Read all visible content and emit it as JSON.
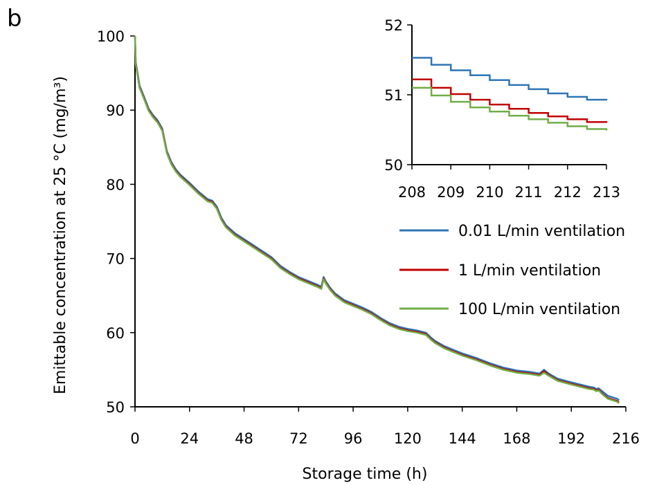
{
  "chart_data": [
    {
      "type": "line",
      "panel_label": "b",
      "xlabel": "Storage time (h)",
      "ylabel": "Emittable concentration at 25 °C (mg/m³)",
      "xlim": [
        0,
        216
      ],
      "ylim": [
        50,
        100
      ],
      "xticks": [
        "0",
        "24",
        "48",
        "72",
        "96",
        "120",
        "144",
        "168",
        "192",
        "216"
      ],
      "yticks": [
        "50",
        "60",
        "70",
        "80",
        "90",
        "100"
      ],
      "legend_position": "right, below inset",
      "x": [
        0,
        0.3,
        1,
        2,
        4,
        6,
        8,
        10,
        12,
        14,
        16,
        18,
        20,
        24,
        28,
        32,
        34,
        36,
        38,
        40,
        44,
        48,
        52,
        56,
        60,
        64,
        68,
        72,
        76,
        80,
        82,
        83,
        84,
        86,
        88,
        92,
        96,
        100,
        104,
        108,
        112,
        116,
        120,
        124,
        128,
        130,
        132,
        136,
        140,
        144,
        150,
        156,
        162,
        168,
        174,
        178,
        180,
        182,
        186,
        192,
        196,
        200,
        202,
        203,
        204,
        206,
        208,
        210,
        212,
        213
      ],
      "series": [
        {
          "name": "0.01 L/min ventilation",
          "color": "#2e75b6",
          "y": [
            100,
            96.5,
            95.2,
            93.3,
            91.8,
            90.2,
            89.3,
            88.6,
            87.5,
            84.5,
            83.0,
            82.0,
            81.3,
            80.2,
            79.0,
            78.0,
            77.8,
            77.0,
            75.5,
            74.5,
            73.4,
            72.6,
            71.8,
            71.0,
            70.2,
            69.0,
            68.2,
            67.5,
            67.0,
            66.5,
            66.2,
            67.5,
            66.9,
            66.0,
            65.3,
            64.4,
            63.9,
            63.4,
            62.8,
            62.0,
            61.3,
            60.8,
            60.5,
            60.3,
            60.0,
            59.4,
            58.9,
            58.2,
            57.7,
            57.2,
            56.6,
            55.9,
            55.3,
            54.9,
            54.7,
            54.5,
            55.0,
            54.5,
            53.8,
            53.3,
            53.0,
            52.7,
            52.6,
            52.4,
            52.5,
            52.0,
            51.5,
            51.3,
            51.1,
            50.9
          ]
        },
        {
          "name": "1 L/min ventilation",
          "color": "#c00000",
          "y": [
            100,
            96.3,
            95.0,
            93.1,
            91.6,
            90.0,
            89.1,
            88.4,
            87.3,
            84.3,
            82.8,
            81.8,
            81.1,
            80.0,
            78.8,
            77.8,
            77.6,
            76.8,
            75.3,
            74.3,
            73.2,
            72.4,
            71.6,
            70.8,
            70.0,
            68.8,
            68.0,
            67.3,
            66.8,
            66.3,
            66.0,
            67.3,
            66.7,
            65.8,
            65.1,
            64.2,
            63.7,
            63.2,
            62.6,
            61.8,
            61.1,
            60.6,
            60.3,
            60.1,
            59.8,
            59.2,
            58.7,
            58.0,
            57.5,
            57.0,
            56.4,
            55.7,
            55.1,
            54.7,
            54.5,
            54.3,
            54.8,
            54.3,
            53.6,
            53.1,
            52.8,
            52.5,
            52.4,
            52.2,
            52.3,
            51.7,
            51.2,
            51.0,
            50.8,
            50.6
          ]
        },
        {
          "name": "100 L/min ventilation",
          "color": "#70ad47",
          "y": [
            100,
            96.2,
            94.9,
            93.0,
            91.5,
            89.9,
            89.0,
            88.3,
            87.2,
            84.2,
            82.7,
            81.7,
            81.0,
            79.9,
            78.7,
            77.7,
            77.5,
            76.7,
            75.2,
            74.2,
            73.1,
            72.3,
            71.5,
            70.7,
            69.9,
            68.7,
            67.9,
            67.2,
            66.7,
            66.2,
            65.9,
            67.2,
            66.6,
            65.7,
            65.0,
            64.1,
            63.6,
            63.1,
            62.5,
            61.7,
            61.0,
            60.5,
            60.2,
            60.0,
            59.7,
            59.1,
            58.6,
            57.9,
            57.4,
            56.9,
            56.3,
            55.6,
            55.0,
            54.6,
            54.4,
            54.2,
            54.6,
            54.2,
            53.5,
            53.0,
            52.7,
            52.4,
            52.3,
            52.1,
            52.2,
            51.6,
            51.1,
            50.9,
            50.7,
            50.5
          ]
        }
      ]
    },
    {
      "type": "line",
      "role": "inset",
      "xlim": [
        208,
        213
      ],
      "ylim": [
        50,
        52
      ],
      "xticks": [
        "208",
        "209",
        "210",
        "211",
        "212",
        "213"
      ],
      "yticks": [
        "50",
        "51",
        "52"
      ],
      "series": [
        {
          "name": "0.01 L/min ventilation",
          "color": "#2e75b6",
          "x": [
            208,
            208.5,
            209,
            209.5,
            210,
            210.5,
            211,
            211.5,
            212,
            212.5,
            213
          ],
          "y": [
            51.53,
            51.43,
            51.35,
            51.28,
            51.21,
            51.14,
            51.08,
            51.02,
            50.97,
            50.93,
            50.92
          ]
        },
        {
          "name": "1 L/min ventilation",
          "color": "#c00000",
          "x": [
            208,
            208.5,
            209,
            209.5,
            210,
            210.5,
            211,
            211.5,
            212,
            212.5,
            213
          ],
          "y": [
            51.22,
            51.1,
            51.01,
            50.93,
            50.86,
            50.8,
            50.74,
            50.69,
            50.65,
            50.61,
            50.6
          ]
        },
        {
          "name": "100 L/min ventilation",
          "color": "#70ad47",
          "x": [
            208,
            208.5,
            209,
            209.5,
            210,
            210.5,
            211,
            211.5,
            212,
            212.5,
            213
          ],
          "y": [
            51.1,
            50.99,
            50.9,
            50.82,
            50.76,
            50.7,
            50.65,
            50.6,
            50.55,
            50.51,
            50.49
          ]
        }
      ]
    }
  ]
}
